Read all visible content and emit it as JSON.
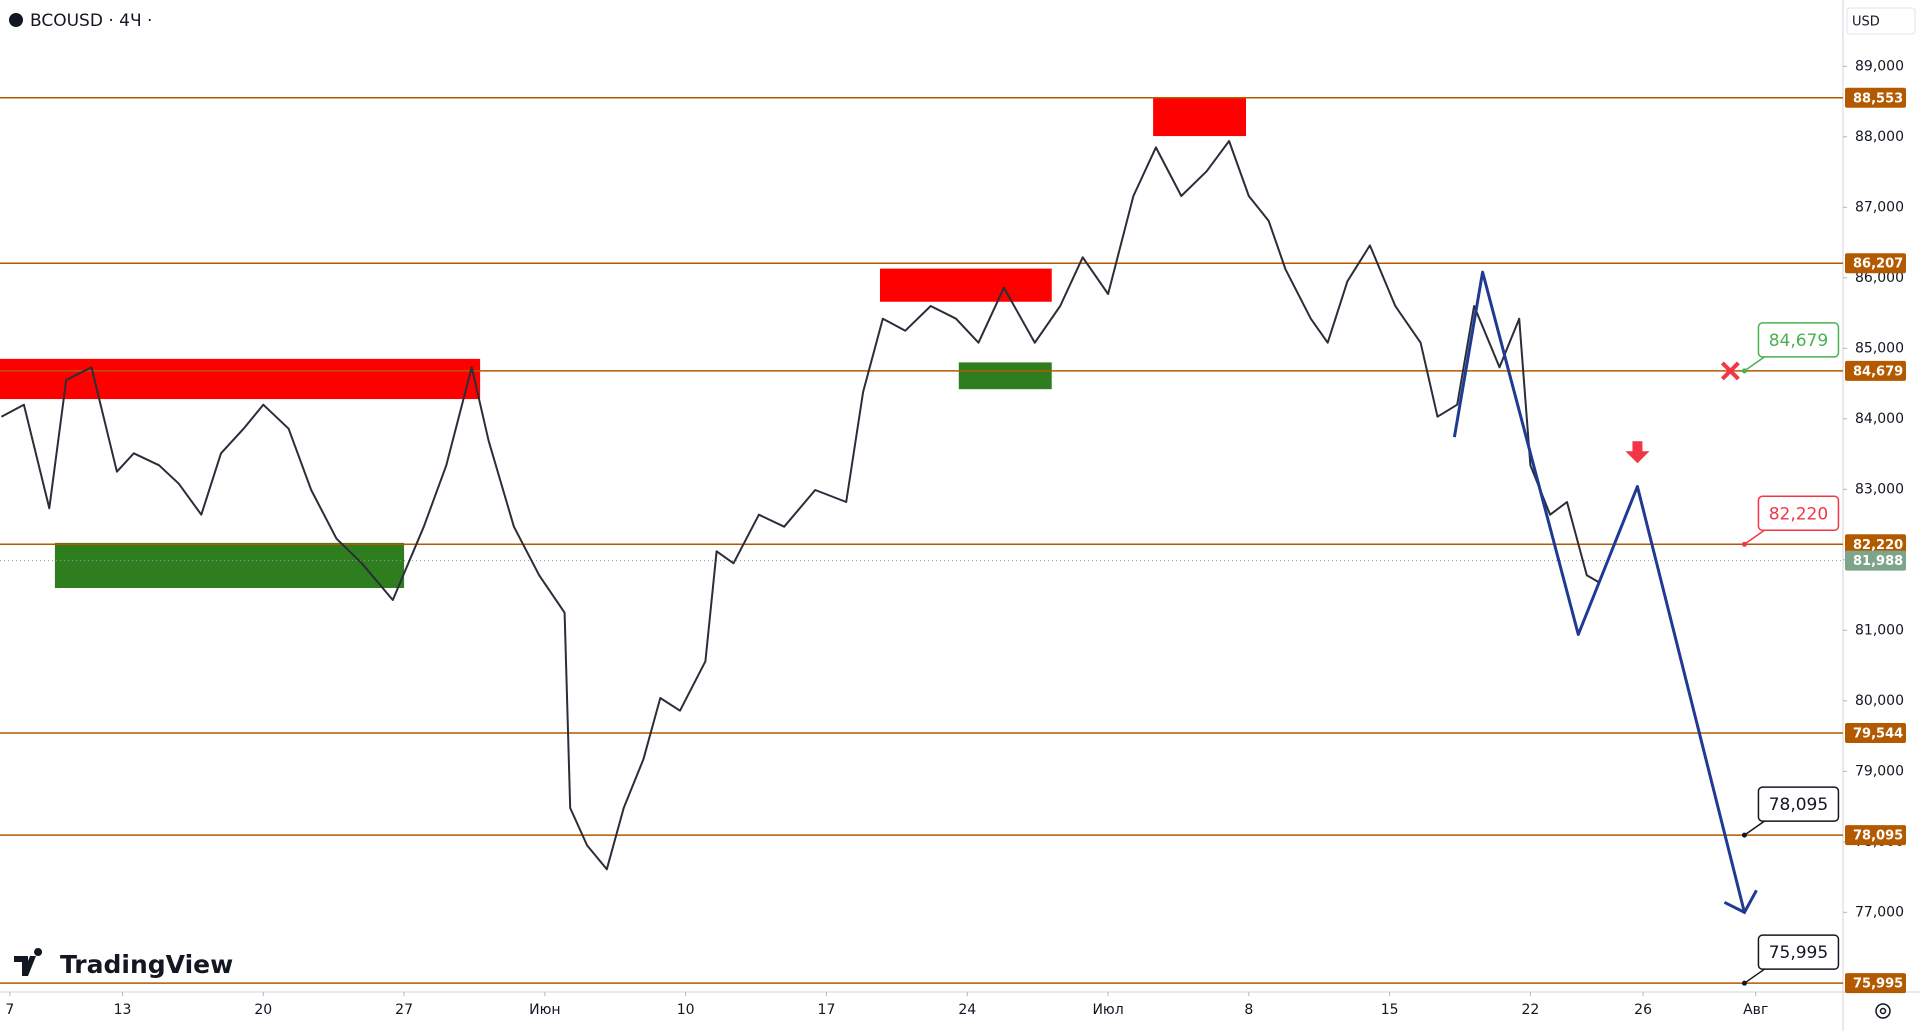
{
  "chart_data": {
    "type": "line",
    "title": "BCOUSD · 4Ч ·",
    "currency": "USD",
    "watermark": "TradingView",
    "xlim": [
      -0.35,
      65.1
    ],
    "xticks": [
      {
        "value": 0,
        "label": "7"
      },
      {
        "value": 4,
        "label": "13"
      },
      {
        "value": 9,
        "label": "20"
      },
      {
        "value": 14,
        "label": "27"
      },
      {
        "value": 19,
        "label": "Июн"
      },
      {
        "value": 24,
        "label": "10"
      },
      {
        "value": 29,
        "label": "17"
      },
      {
        "value": 34,
        "label": "24"
      },
      {
        "value": 39,
        "label": "Июл"
      },
      {
        "value": 44,
        "label": "8"
      },
      {
        "value": 49,
        "label": "15"
      },
      {
        "value": 54,
        "label": "22"
      },
      {
        "value": 58,
        "label": "26"
      },
      {
        "value": 62,
        "label": "Авг"
      }
    ],
    "ylim": [
      75870,
      89940
    ],
    "yticks": [
      {
        "value": 89000,
        "label": "89,000"
      },
      {
        "value": 88000,
        "label": "88,000"
      },
      {
        "value": 87000,
        "label": "87,000"
      },
      {
        "value": 86000,
        "label": "86,000"
      },
      {
        "value": 85000,
        "label": "85,000"
      },
      {
        "value": 84000,
        "label": "84,000"
      },
      {
        "value": 83000,
        "label": "83,000"
      },
      {
        "value": 82000,
        "label": "82,000"
      },
      {
        "value": 81000,
        "label": "81,000"
      },
      {
        "value": 80000,
        "label": "80,000"
      },
      {
        "value": 79000,
        "label": "79,000"
      },
      {
        "value": 78000,
        "label": "78,000"
      },
      {
        "value": 77000,
        "label": "77,000"
      }
    ],
    "color": "#2a2e39",
    "x": [
      -0.3,
      0.5,
      1.4,
      2.0,
      2.9,
      3.8,
      4.4,
      5.3,
      6.0,
      6.8,
      7.5,
      8.3,
      9.0,
      9.9,
      10.7,
      11.6,
      12.5,
      13.6,
      14.7,
      15.5,
      16.4,
      17.0,
      17.9,
      18.8,
      19.7,
      19.9,
      20.5,
      21.2,
      21.8,
      22.5,
      23.1,
      23.8,
      24.7,
      25.1,
      25.7,
      26.6,
      27.5,
      28.6,
      29.7,
      30.3,
      31.0,
      31.8,
      32.7,
      33.6,
      34.4,
      35.3,
      36.4,
      37.3,
      38.1,
      39.0,
      39.9,
      40.7,
      41.6,
      42.5,
      43.3,
      44.0,
      44.7,
      45.3,
      46.2,
      46.8,
      47.5,
      48.3,
      49.2,
      50.1,
      50.7,
      51.4,
      52.0,
      52.9,
      53.6,
      54.0,
      54.7,
      55.3,
      56.0,
      56.4
    ],
    "values": [
      84030,
      84200,
      82730,
      84550,
      84730,
      83250,
      83510,
      83340,
      83080,
      82640,
      83510,
      83860,
      84200,
      83860,
      82990,
      82300,
      81950,
      81430,
      82470,
      83340,
      84730,
      83690,
      82470,
      81780,
      81250,
      78480,
      77950,
      77610,
      78480,
      79170,
      80040,
      79860,
      80560,
      82120,
      81950,
      82640,
      82470,
      82990,
      82820,
      84380,
      85420,
      85250,
      85600,
      85420,
      85080,
      85860,
      85080,
      85600,
      86290,
      85770,
      87160,
      87850,
      87160,
      87510,
      87940,
      87160,
      86810,
      86120,
      85420,
      85080,
      85950,
      86460,
      85600,
      85080,
      84030,
      84200,
      85600,
      84730,
      85420,
      83340,
      82640,
      82820,
      81780,
      81690
    ],
    "levels": [
      {
        "value": 88553,
        "label": "88,553",
        "color": "#b35a00"
      },
      {
        "value": 86207,
        "label": "86,207",
        "color": "#b35a00"
      },
      {
        "value": 84679,
        "label": "84,679",
        "color": "#b35a00"
      },
      {
        "value": 82220,
        "label": "82,220",
        "color": "#b35a00"
      },
      {
        "value": 79544,
        "label": "79,544",
        "color": "#b35a00"
      },
      {
        "value": 78095,
        "label": "78,095",
        "color": "#b35a00"
      },
      {
        "value": 75995,
        "label": "75,995",
        "color": "#b35a00"
      }
    ],
    "last_price": {
      "value": 81988,
      "label": "81,988",
      "color": "#7ea58a"
    },
    "zones": [
      {
        "x": [
          -0.35,
          16.7
        ],
        "values": [
          84850,
          84280
        ],
        "color": "#ff0000"
      },
      {
        "x": [
          1.6,
          14.0
        ],
        "values": [
          82240,
          81600
        ],
        "color": "#2e7d1f"
      },
      {
        "x": [
          30.9,
          37.0
        ],
        "values": [
          86130,
          85660
        ],
        "color": "#ff0000"
      },
      {
        "x": [
          33.7,
          37.0
        ],
        "values": [
          84800,
          84420
        ],
        "color": "#2e7d1f"
      },
      {
        "x": [
          40.6,
          43.9
        ],
        "values": [
          88550,
          88010
        ],
        "color": "#ff0000"
      }
    ],
    "forecast": {
      "x": [
        51.3,
        52.3,
        55.7,
        57.8,
        61.6
      ],
      "values": [
        83740,
        86080,
        80940,
        83040,
        77000
      ],
      "color": "#1f3a93"
    },
    "callouts": [
      {
        "x": 61.6,
        "value": 84679,
        "label": "84,679",
        "color": "#4caf50"
      },
      {
        "x": 61.6,
        "value": 82220,
        "label": "82,220",
        "color": "#f23645"
      },
      {
        "x": 61.6,
        "value": 78095,
        "label": "78,095",
        "color": "#131722"
      },
      {
        "x": 61.6,
        "value": 75995,
        "label": "75,995",
        "color": "#131722"
      }
    ],
    "markers": [
      {
        "shape": "cross",
        "x": 61.1,
        "value": 84679,
        "color": "#f23645"
      },
      {
        "shape": "arrow-down",
        "x": 57.8,
        "value": 83370,
        "color": "#f23645"
      }
    ]
  }
}
